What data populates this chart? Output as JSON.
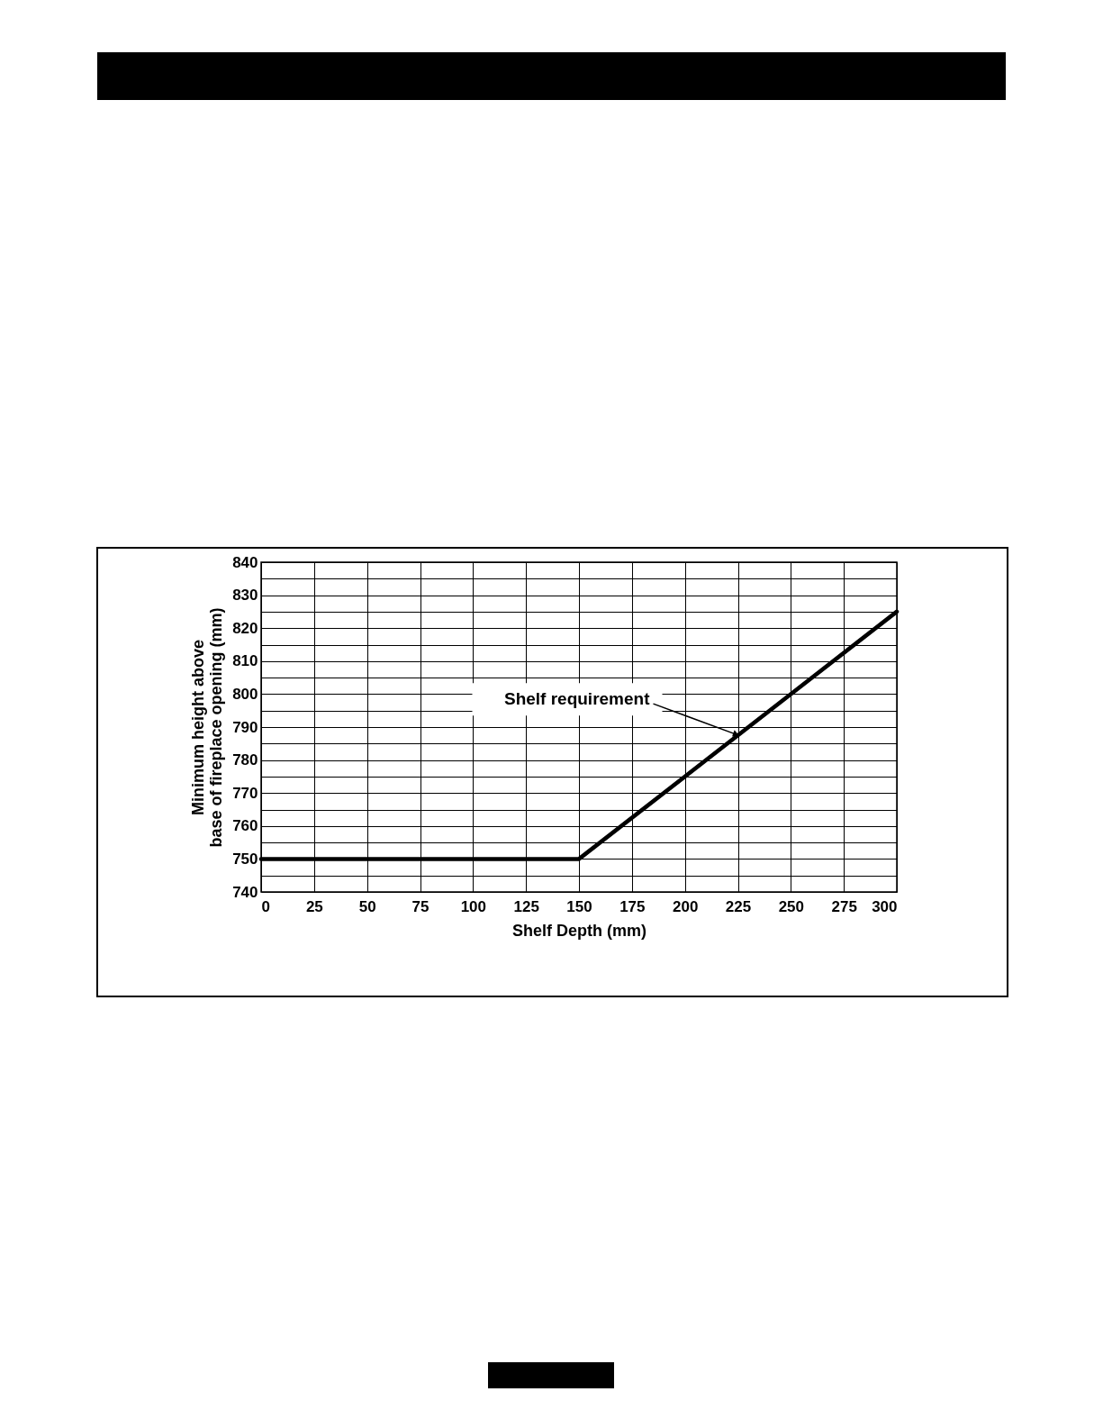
{
  "chart_data": {
    "type": "line",
    "xlabel": "Shelf Depth (mm)",
    "ylabel": "Minimum height above\nbase of fireplace opening (mm)",
    "x": [
      0,
      150,
      300
    ],
    "series": [
      {
        "color": "#000000",
        "values": [
          750,
          750,
          825
        ]
      }
    ],
    "xlim": [
      0,
      300
    ],
    "xticks": [
      0,
      25,
      50,
      75,
      100,
      125,
      150,
      175,
      200,
      225,
      250,
      275,
      300
    ],
    "ylim": [
      740,
      840
    ],
    "yticks": [
      740,
      {
        "value": 745,
        "label": null
      },
      750,
      {
        "value": 755,
        "label": null
      },
      760,
      {
        "value": 765,
        "label": null
      },
      770,
      {
        "value": 775,
        "label": null
      },
      780,
      {
        "value": 785,
        "label": null
      },
      790,
      {
        "value": 795,
        "label": null
      },
      800,
      {
        "value": 805,
        "label": null
      },
      810,
      {
        "value": 815,
        "label": null
      },
      820,
      {
        "value": 825,
        "label": null
      },
      830,
      {
        "value": 835,
        "label": null
      },
      840
    ],
    "grid": true,
    "marker": "none",
    "line_style": "solid",
    "annotations": [
      {
        "text": "Shelf requirement",
        "x": 225,
        "y": 787.5
      }
    ]
  }
}
